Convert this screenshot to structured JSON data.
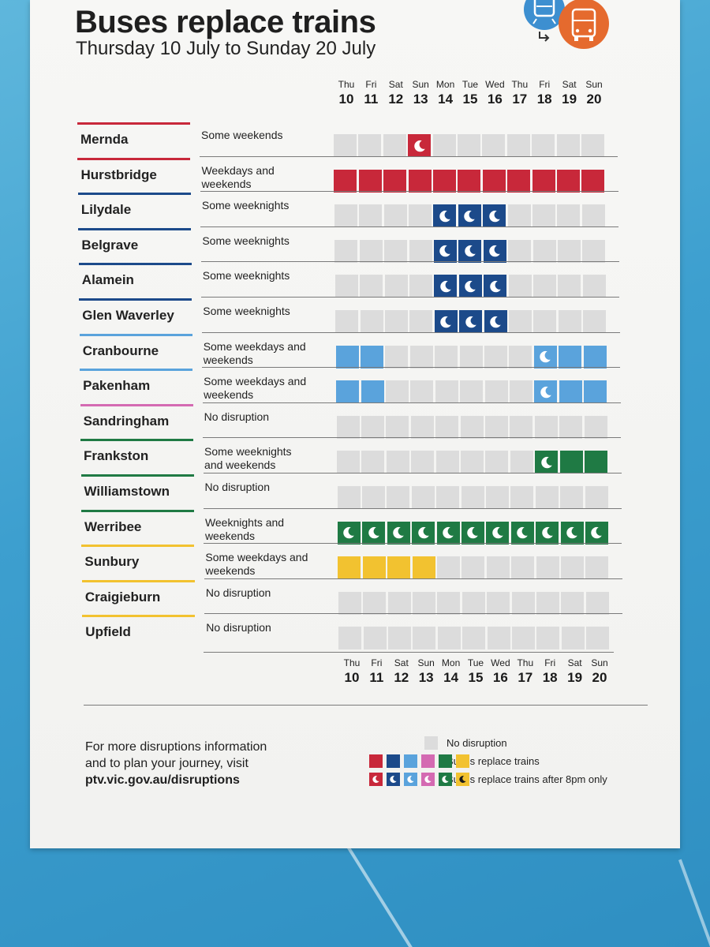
{
  "title": "Buses replace trains",
  "subtitle": "Thursday 10 July to Sunday 20 July",
  "days": [
    {
      "name": "Thu",
      "date": "10"
    },
    {
      "name": "Fri",
      "date": "11"
    },
    {
      "name": "Sat",
      "date": "12"
    },
    {
      "name": "Sun",
      "date": "13"
    },
    {
      "name": "Mon",
      "date": "14"
    },
    {
      "name": "Tue",
      "date": "15"
    },
    {
      "name": "Wed",
      "date": "16"
    },
    {
      "name": "Thu",
      "date": "17"
    },
    {
      "name": "Fri",
      "date": "18"
    },
    {
      "name": "Sat",
      "date": "19"
    },
    {
      "name": "Sun",
      "date": "20"
    }
  ],
  "cell_legend": {
    "0": "No disruption",
    "1": "Buses replace trains",
    "2": "Buses replace trains after 8pm only"
  },
  "lines": [
    {
      "name": "Mernda",
      "desc": "Some weekends",
      "color": "#c8283a",
      "cells": [
        0,
        0,
        0,
        2,
        0,
        0,
        0,
        0,
        0,
        0,
        0
      ]
    },
    {
      "name": "Hurstbridge",
      "desc": "Weekdays and weekends",
      "color": "#c8283a",
      "cells": [
        1,
        1,
        1,
        1,
        1,
        1,
        1,
        1,
        1,
        1,
        1
      ]
    },
    {
      "name": "Lilydale",
      "desc": "Some weeknights",
      "color": "#1c4a8a",
      "cells": [
        0,
        0,
        0,
        0,
        2,
        2,
        2,
        0,
        0,
        0,
        0
      ]
    },
    {
      "name": "Belgrave",
      "desc": "Some weeknights",
      "color": "#1c4a8a",
      "cells": [
        0,
        0,
        0,
        0,
        2,
        2,
        2,
        0,
        0,
        0,
        0
      ]
    },
    {
      "name": "Alamein",
      "desc": "Some weeknights",
      "color": "#1c4a8a",
      "cells": [
        0,
        0,
        0,
        0,
        2,
        2,
        2,
        0,
        0,
        0,
        0
      ]
    },
    {
      "name": "Glen Waverley",
      "desc": "Some weeknights",
      "color": "#1c4a8a",
      "cells": [
        0,
        0,
        0,
        0,
        2,
        2,
        2,
        0,
        0,
        0,
        0
      ]
    },
    {
      "name": "Cranbourne",
      "desc": "Some weekdays and weekends",
      "color": "#5aa3dc",
      "cells": [
        1,
        1,
        0,
        0,
        0,
        0,
        0,
        0,
        2,
        1,
        1
      ]
    },
    {
      "name": "Pakenham",
      "desc": "Some weekdays and weekends",
      "color": "#5aa3dc",
      "cells": [
        1,
        1,
        0,
        0,
        0,
        0,
        0,
        0,
        2,
        1,
        1
      ]
    },
    {
      "name": "Sandringham",
      "desc": "No disruption",
      "color": "#d46ab2",
      "cells": [
        0,
        0,
        0,
        0,
        0,
        0,
        0,
        0,
        0,
        0,
        0
      ]
    },
    {
      "name": "Frankston",
      "desc": "Some weeknights and weekends",
      "color": "#1f7a44",
      "cells": [
        0,
        0,
        0,
        0,
        0,
        0,
        0,
        0,
        2,
        1,
        1
      ]
    },
    {
      "name": "Williamstown",
      "desc": "No disruption",
      "color": "#1f7a44",
      "cells": [
        0,
        0,
        0,
        0,
        0,
        0,
        0,
        0,
        0,
        0,
        0
      ]
    },
    {
      "name": "Werribee",
      "desc": "Weeknights and weekends",
      "color": "#1f7a44",
      "cells": [
        2,
        2,
        2,
        2,
        2,
        2,
        2,
        2,
        2,
        2,
        2
      ]
    },
    {
      "name": "Sunbury",
      "desc": "Some weekdays and weekends",
      "color": "#f2c230",
      "cells": [
        1,
        1,
        1,
        1,
        0,
        0,
        0,
        0,
        0,
        0,
        0
      ]
    },
    {
      "name": "Craigieburn",
      "desc": "No disruption",
      "color": "#f2c230",
      "cells": [
        0,
        0,
        0,
        0,
        0,
        0,
        0,
        0,
        0,
        0,
        0
      ]
    },
    {
      "name": "Upfield",
      "desc": "No disruption",
      "color": "#f2c230",
      "cells": [
        0,
        0,
        0,
        0,
        0,
        0,
        0,
        0,
        0,
        0,
        0
      ]
    }
  ],
  "info": {
    "line1": "For more disruptions information",
    "line2": "and to plan your journey, visit",
    "url": "ptv.vic.gov.au/disruptions"
  },
  "legend": {
    "no_disruption": "No disruption",
    "buses": "Buses replace trains",
    "after8": "Buses replace trains after 8pm only",
    "colors": [
      "#c8283a",
      "#1c4a8a",
      "#5aa3dc",
      "#d46ab2",
      "#1f7a44",
      "#f2c230"
    ],
    "grey": "#dcdcdc"
  },
  "icons": [
    "train-icon",
    "bus-icon",
    "moon-icon"
  ]
}
